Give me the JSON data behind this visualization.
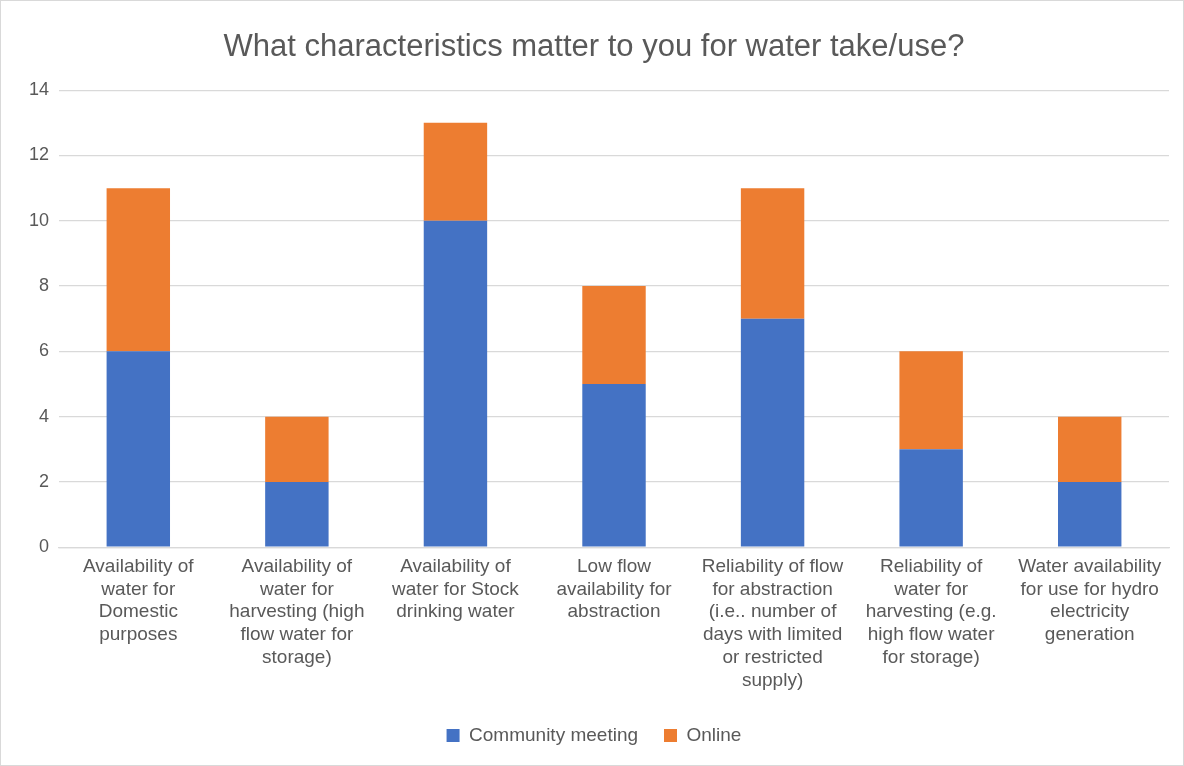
{
  "chart_data": {
    "type": "bar",
    "title": "What characteristics matter to you for water take/use?",
    "categories": [
      "Availability of water for Domestic purposes",
      "Availability of water for harvesting (high flow water for storage)",
      "Availability of water for Stock drinking water",
      "Low flow availability for abstraction",
      "Reliability of flow for abstraction (i.e.. number of days with limited or restricted supply)",
      "Reliability of water for harvesting (e.g. high flow water for storage)",
      "Water availability for use for hydro electricity generation"
    ],
    "series": [
      {
        "name": "Community meeting",
        "color": "#4472c4",
        "values": [
          6,
          2,
          10,
          5,
          7,
          3,
          2
        ]
      },
      {
        "name": "Online",
        "color": "#ed7d31",
        "values": [
          5,
          2,
          3,
          3,
          4,
          3,
          2
        ]
      }
    ],
    "stacked": true,
    "ylim": [
      0,
      14
    ],
    "yticks": [
      0,
      2,
      4,
      6,
      8,
      10,
      12,
      14
    ],
    "grid": "y",
    "legend": "bottom"
  }
}
